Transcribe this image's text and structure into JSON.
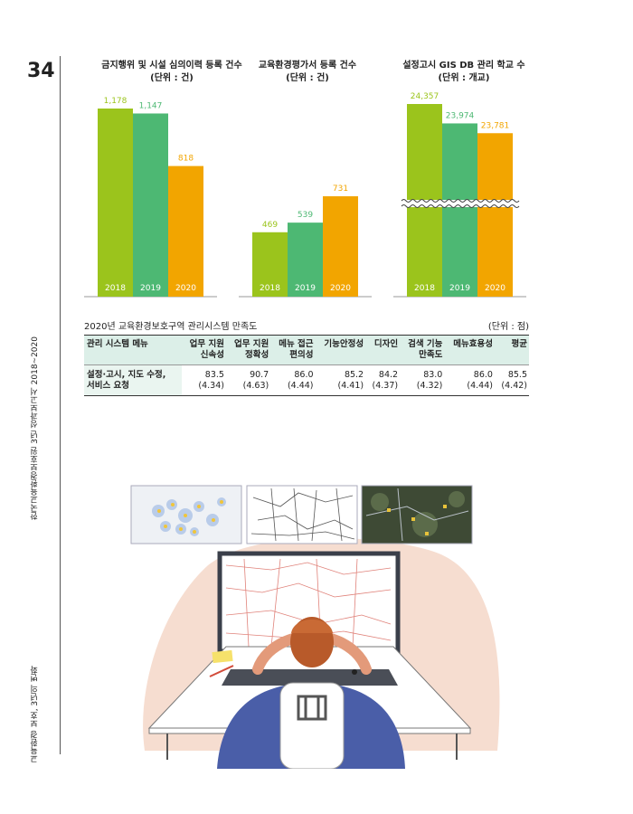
{
  "page_number": "34",
  "side_text_top": "한국교육환경보호원 3년 성과보고서 2018~2020",
  "side_text_bottom": "교육환경 보호, 3년의 변화",
  "chart_data": [
    {
      "type": "bar",
      "title": "금지행위 및 시설 심의이력 등록 건수",
      "subtitle": "(단위 : 건)",
      "categories": [
        "2018",
        "2019",
        "2020"
      ],
      "values": [
        1178,
        1147,
        818
      ],
      "value_labels": [
        "1,178",
        "1,147",
        "818"
      ],
      "colors": [
        "#9bc41c",
        "#4db873",
        "#f2a500"
      ]
    },
    {
      "type": "bar",
      "title": "교육환경평가서 등록 건수",
      "subtitle": "(단위 : 건)",
      "categories": [
        "2018",
        "2019",
        "2020"
      ],
      "values": [
        469,
        539,
        731
      ],
      "value_labels": [
        "469",
        "539",
        "731"
      ],
      "colors": [
        "#9bc41c",
        "#4db873",
        "#f2a500"
      ]
    },
    {
      "type": "bar",
      "title": "설정고시 GIS DB 관리 학교 수",
      "subtitle": "(단위 : 개교)",
      "categories": [
        "2018",
        "2019",
        "2020"
      ],
      "values": [
        24357,
        23974,
        23781
      ],
      "value_labels": [
        "24,357",
        "23,974",
        "23,781"
      ],
      "axis_break": true,
      "colors": [
        "#9bc41c",
        "#4db873",
        "#f2a500"
      ]
    }
  ],
  "table": {
    "title": "2020년 교육환경보호구역 관리시스템 만족도",
    "unit": "(단위 : 점)",
    "headers": [
      "관리 시스템 메뉴",
      "업무 지원\n신속성",
      "업무 지원\n정확성",
      "메뉴 접근\n편의성",
      "기능안정성",
      "디자인",
      "검색 기능\n만족도",
      "메뉴효용성",
      "평균"
    ],
    "row_label": "설정·고시, 지도 수정,\n서비스 요청",
    "scores": [
      "83.5",
      "90.7",
      "86.0",
      "85.2",
      "84.2",
      "83.0",
      "86.0",
      "85.5"
    ],
    "sub_scores": [
      "(4.34)",
      "(4.63)",
      "(4.44)",
      "(4.41)",
      "(4.37)",
      "(4.32)",
      "(4.44)",
      "(4.42)"
    ]
  }
}
